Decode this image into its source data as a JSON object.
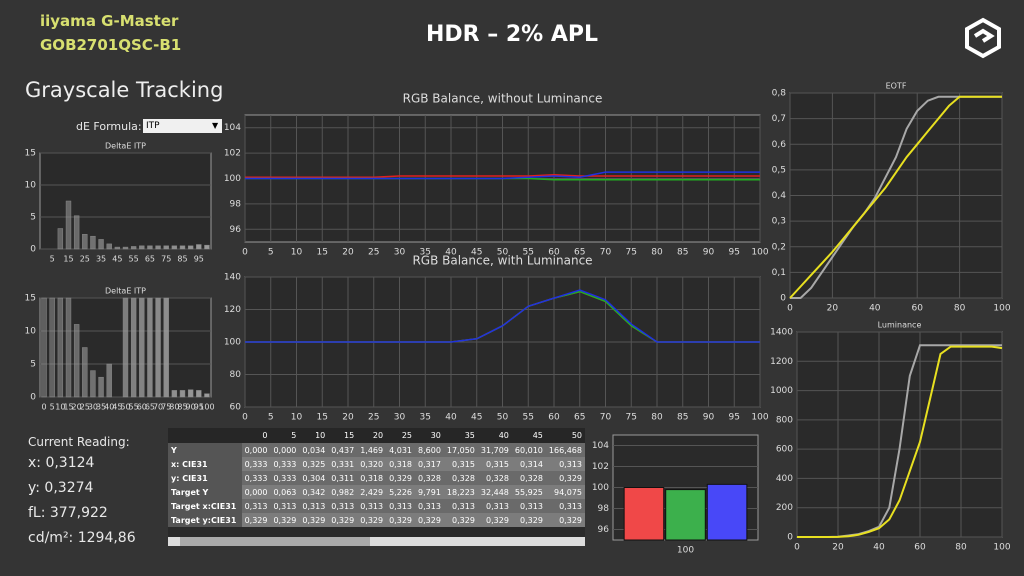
{
  "header": {
    "brand_line1": "iiyama G-Master",
    "brand_line2": "GOB2701QSC-B1",
    "title": "HDR – 2% APL"
  },
  "section_title": "Grayscale Tracking",
  "de_formula": {
    "label": "dE Formula:",
    "value": "ITP"
  },
  "reading": {
    "label": "Current Reading:",
    "lines": [
      "x: 0,3124",
      "y: 0,3274",
      "fL: 377,922",
      "cd/m²: 1294,86"
    ]
  },
  "chart_data": [
    {
      "type": "bar",
      "title": "DeltaE ITP",
      "color": "#a0a0a0",
      "categories": [
        null,
        "5",
        null,
        "15",
        null,
        "25",
        null,
        "35",
        null,
        "45",
        null,
        "55",
        null,
        "65",
        null,
        "75",
        null,
        "85",
        null,
        "95",
        null
      ],
      "values": [
        0,
        0,
        3.2,
        7.5,
        5.2,
        2.3,
        2.0,
        1.5,
        0.8,
        0.3,
        0.3,
        0.4,
        0.5,
        0.5,
        0.5,
        0.5,
        0.5,
        0.5,
        0.5,
        0.7,
        0.6
      ],
      "ylim": [
        0,
        15
      ],
      "yticks": [
        0,
        5,
        10,
        15
      ],
      "grid": true
    },
    {
      "type": "bar",
      "title": "DeltaE ITP",
      "color": "#a0a0a0",
      "categories": [
        "0",
        "5",
        "10",
        "15",
        "20",
        "25",
        "30",
        "35",
        "40",
        "45",
        "50",
        "55",
        "60",
        "65",
        "70",
        "75",
        "80",
        "85",
        "90",
        "95",
        "100"
      ],
      "values": [
        15,
        15,
        15,
        15,
        11,
        7.5,
        4,
        3,
        5,
        0,
        15,
        15,
        15,
        15,
        15,
        15,
        1,
        1,
        1.1,
        1,
        0.5
      ],
      "ylim": [
        0,
        15
      ],
      "yticks": [
        0,
        5,
        10,
        15
      ],
      "grid": true
    },
    {
      "type": "line",
      "title": "RGB Balance, without Luminance",
      "x": [
        0,
        5,
        10,
        15,
        20,
        25,
        30,
        35,
        40,
        45,
        50,
        55,
        60,
        65,
        70,
        75,
        80,
        85,
        90,
        95,
        100
      ],
      "xlim": [
        0,
        100
      ],
      "xticks": [
        0,
        5,
        10,
        15,
        20,
        25,
        30,
        35,
        40,
        45,
        50,
        55,
        60,
        65,
        70,
        75,
        80,
        85,
        90,
        95,
        100
      ],
      "ylim": [
        95,
        105
      ],
      "yticks": [
        96,
        98,
        100,
        102,
        104
      ],
      "grid": true,
      "series": [
        {
          "color": "#e02020",
          "values": [
            100.1,
            100.1,
            100.1,
            100.1,
            100.1,
            100.1,
            100.2,
            100.2,
            100.2,
            100.2,
            100.2,
            100.2,
            100.3,
            100.2,
            100.2,
            100.2,
            100.2,
            100.2,
            100.2,
            100.2,
            100.2
          ]
        },
        {
          "color": "#20b020",
          "values": [
            100,
            100,
            100,
            100,
            100,
            100,
            100,
            100,
            100,
            100,
            100,
            100,
            99.9,
            99.9,
            99.9,
            99.9,
            99.9,
            99.9,
            99.9,
            99.9,
            99.9
          ]
        },
        {
          "color": "#2030e0",
          "values": [
            100,
            100,
            100,
            100,
            100,
            100,
            100,
            100,
            100,
            100,
            100,
            100.1,
            100.2,
            100.1,
            100.5,
            100.5,
            100.5,
            100.5,
            100.5,
            100.5,
            100.5
          ]
        }
      ]
    },
    {
      "type": "line",
      "title": "RGB Balance, with Luminance",
      "x": [
        0,
        5,
        10,
        15,
        20,
        25,
        30,
        35,
        40,
        45,
        50,
        55,
        60,
        65,
        70,
        75,
        80,
        85,
        90,
        95,
        100
      ],
      "xlim": [
        0,
        100
      ],
      "xticks": [
        0,
        5,
        10,
        15,
        20,
        25,
        30,
        35,
        40,
        45,
        50,
        55,
        60,
        65,
        70,
        75,
        80,
        85,
        90,
        95,
        100
      ],
      "ylim": [
        60,
        140
      ],
      "yticks": [
        60,
        80,
        100,
        120,
        140
      ],
      "grid": true,
      "series": [
        {
          "color": "#e02020",
          "values": [
            100,
            100,
            100,
            100,
            100,
            100,
            100,
            100,
            100,
            102,
            110,
            122,
            127,
            131,
            125,
            110,
            100,
            100,
            100,
            100,
            100
          ]
        },
        {
          "color": "#20b020",
          "values": [
            100,
            100,
            100,
            100,
            100,
            100,
            100,
            100,
            100,
            102,
            110,
            122,
            127,
            131,
            125,
            110,
            100,
            100,
            100,
            100,
            100
          ]
        },
        {
          "color": "#2030e0",
          "values": [
            100,
            100,
            100,
            100,
            100,
            100,
            100,
            100,
            100,
            102,
            110,
            122,
            127,
            132,
            126,
            111,
            100,
            100,
            100,
            100,
            100
          ]
        }
      ]
    },
    {
      "type": "line",
      "title": "EOTF",
      "x": [
        0,
        5,
        10,
        15,
        20,
        25,
        30,
        35,
        40,
        45,
        50,
        55,
        60,
        65,
        70,
        75,
        80,
        85,
        90,
        95,
        100
      ],
      "xlim": [
        0,
        100
      ],
      "xticks": [
        0,
        20,
        40,
        60,
        80,
        100
      ],
      "ylim": [
        0,
        0.8
      ],
      "yticks": [
        0,
        {
          "value": 0.1,
          "label": "0,1"
        },
        {
          "value": 0.2,
          "label": "0,2"
        },
        {
          "value": 0.3,
          "label": "0,3"
        },
        {
          "value": 0.4,
          "label": "0,4"
        },
        {
          "value": 0.5,
          "label": "0,5"
        },
        {
          "value": 0.6,
          "label": "0,6"
        },
        {
          "value": 0.7,
          "label": "0,7"
        },
        {
          "value": 0.8,
          "label": "0,8"
        }
      ],
      "grid": true,
      "series": [
        {
          "color": "#a8a8a8",
          "values": [
            0,
            0,
            0.04,
            0.1,
            0.16,
            0.22,
            0.28,
            0.33,
            0.39,
            0.47,
            0.55,
            0.66,
            0.73,
            0.77,
            0.785,
            0.785,
            0.785,
            0.785,
            0.785,
            0.785,
            0.785
          ]
        },
        {
          "color": "#e8e020",
          "values": [
            0,
            0.045,
            0.09,
            0.135,
            0.18,
            0.23,
            0.28,
            0.33,
            0.38,
            0.43,
            0.49,
            0.55,
            0.6,
            0.65,
            0.7,
            0.75,
            0.785,
            0.785,
            0.785,
            0.785,
            0.785
          ]
        }
      ]
    },
    {
      "type": "line",
      "title": "Luminance",
      "x": [
        0,
        5,
        10,
        15,
        20,
        25,
        30,
        35,
        40,
        45,
        50,
        55,
        60,
        65,
        70,
        75,
        80,
        85,
        90,
        95,
        100
      ],
      "xlim": [
        0,
        100
      ],
      "xticks": [
        0,
        20,
        40,
        60,
        80,
        100
      ],
      "ylim": [
        0,
        1400
      ],
      "yticks": [
        0,
        200,
        400,
        600,
        800,
        1000,
        1200,
        1400
      ],
      "grid": true,
      "series": [
        {
          "color": "#a8a8a8",
          "values": [
            0,
            0,
            0,
            0,
            2,
            10,
            20,
            40,
            70,
            200,
            600,
            1100,
            1310,
            1310,
            1310,
            1310,
            1310,
            1310,
            1310,
            1310,
            1310
          ]
        },
        {
          "color": "#e8e020",
          "values": [
            0,
            0,
            0,
            0,
            1,
            5,
            15,
            35,
            60,
            120,
            250,
            450,
            650,
            950,
            1250,
            1300,
            1300,
            1300,
            1300,
            1300,
            1290
          ]
        }
      ]
    },
    {
      "type": "bar",
      "categories": [
        "100"
      ],
      "series": [
        {
          "color": "#f04848",
          "values": [
            100
          ]
        },
        {
          "color": "#3cb04c",
          "values": [
            99.8
          ]
        },
        {
          "color": "#4848f8",
          "values": [
            100.3
          ]
        }
      ],
      "ylim": [
        95,
        105
      ],
      "yticks": [
        96,
        98,
        100,
        102,
        104
      ],
      "grid": true
    }
  ],
  "table": {
    "header": [
      "0",
      "5",
      "10",
      "15",
      "20",
      "25",
      "30",
      "35",
      "40",
      "45",
      "50"
    ],
    "rows": [
      [
        "Y",
        "0,000",
        "0,000",
        "0,034",
        "0,437",
        "1,469",
        "4,031",
        "8,600",
        "17,050",
        "31,709",
        "60,010",
        "166,468"
      ],
      [
        "x: CIE31",
        "0,333",
        "0,333",
        "0,325",
        "0,331",
        "0,320",
        "0,318",
        "0,317",
        "0,315",
        "0,315",
        "0,314",
        "0,313"
      ],
      [
        "y: CIE31",
        "0,333",
        "0,333",
        "0,304",
        "0,311",
        "0,318",
        "0,329",
        "0,328",
        "0,328",
        "0,328",
        "0,328",
        "0,329"
      ],
      [
        "Target Y",
        "0,000",
        "0,063",
        "0,342",
        "0,982",
        "2,429",
        "5,226",
        "9,791",
        "18,223",
        "32,448",
        "55,925",
        "94,075"
      ],
      [
        "Target x:CIE31",
        "0,313",
        "0,313",
        "0,313",
        "0,313",
        "0,313",
        "0,313",
        "0,313",
        "0,313",
        "0,313",
        "0,313",
        "0,313"
      ],
      [
        "Target y:CIE31",
        "0,329",
        "0,329",
        "0,329",
        "0,329",
        "0,329",
        "0,329",
        "0,329",
        "0,329",
        "0,329",
        "0,329",
        "0,329"
      ]
    ]
  }
}
